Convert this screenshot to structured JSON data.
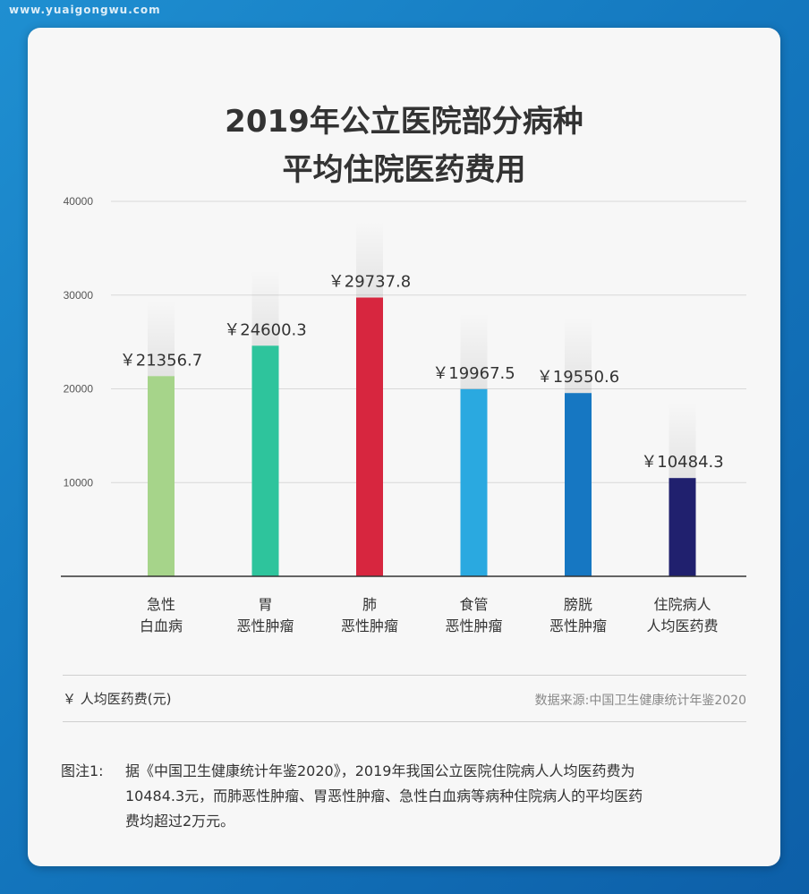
{
  "watermark": "www.yuaigongwu.com",
  "title": {
    "line1": "2019年公立医院部分病种",
    "line2": "平均住院医药费用"
  },
  "unit_label": "￥ 人均医药费(元)",
  "source": "数据来源:中国卫生健康统计年鉴2020",
  "note": {
    "label": "图注1:",
    "lines": [
      "据《中国卫生健康统计年鉴2020》，2019年我国公立医院住院病人人均医药费为",
      "10484.3元，而肺恶性肿瘤、胃恶性肿瘤、急性白血病等病种住院病人的平均医药",
      "费均超过2万元。"
    ]
  },
  "chart_data": {
    "type": "bar",
    "categories": [
      [
        "急性",
        "白血病"
      ],
      [
        "胃",
        "恶性肿瘤"
      ],
      [
        "肺",
        "恶性肿瘤"
      ],
      [
        "食管",
        "恶性肿瘤"
      ],
      [
        "膀胱",
        "恶性肿瘤"
      ],
      [
        "住院病人",
        "人均医药费"
      ]
    ],
    "values": [
      21356.7,
      24600.3,
      29737.8,
      19967.5,
      19550.6,
      10484.3
    ],
    "value_labels": [
      "￥21356.7",
      "￥24600.3",
      "￥29737.8",
      "￥19967.5",
      "￥19550.6",
      "￥10484.3"
    ],
    "colors": [
      "#a6d48a",
      "#2ec49c",
      "#d7263f",
      "#2aa9e0",
      "#1677c2",
      "#20206e"
    ],
    "yticks": [
      10000,
      20000,
      30000,
      40000
    ],
    "ylim": [
      0,
      40000
    ],
    "grid": true
  }
}
